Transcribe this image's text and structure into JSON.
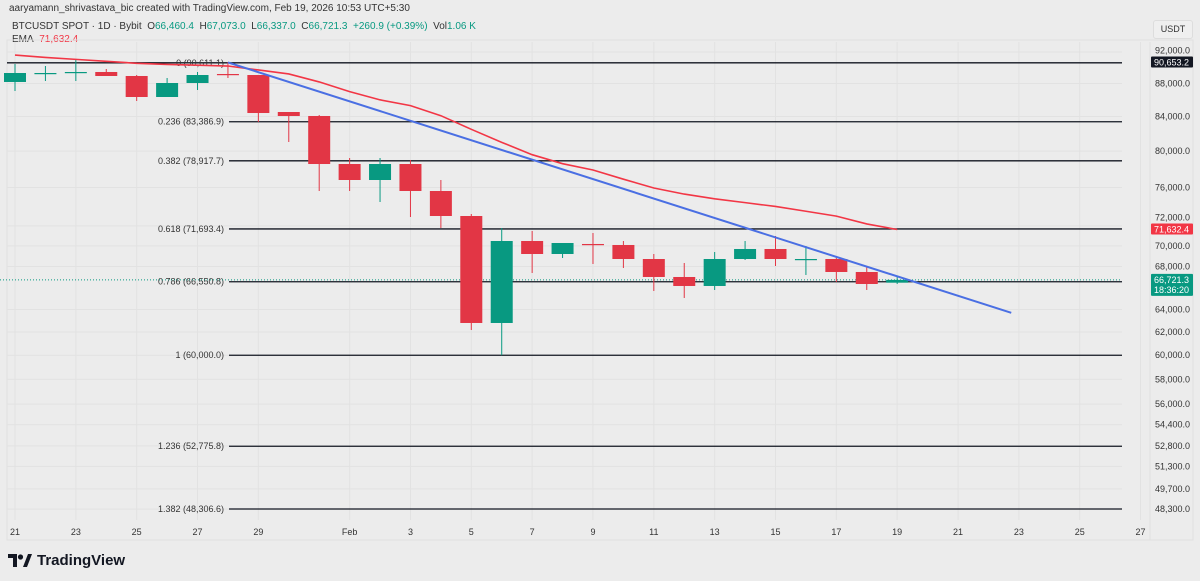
{
  "attribution": "aaryamann_shrivastava_bic created with TradingView.com, Feb 19, 2026 10:53 UTC+5:30",
  "legend": {
    "symbol": "BTCUSDT SPOT · 1D · Bybit",
    "open_label": "O",
    "open": "66,460.4",
    "high_label": "H",
    "high": "67,073.0",
    "low_label": "L",
    "low": "66,337.0",
    "close_label": "C",
    "close": "66,721.3",
    "change": "+260.9 (+0.39%)",
    "vol_label": "Vol",
    "vol": "1.06 K",
    "ema_label": "EMA",
    "ema_value": "71,632.4"
  },
  "currency_button": "USDT",
  "logo_text": "TradingView",
  "colors": {
    "up": "#089981",
    "down": "#e23645",
    "ema": "#f23645",
    "trend": "#4a6fe3",
    "fib": "#131722",
    "grid": "#e2e2e2"
  },
  "chart_data": {
    "type": "candlestick",
    "yscale": "log",
    "ylim": [
      47800,
      93500
    ],
    "y_ticks": [
      "92,000.0",
      "88,000.0",
      "84,000.0",
      "80,000.0",
      "76,000.0",
      "72,000.0",
      "70,000.0",
      "68,000.0",
      "64,000.0",
      "62,000.0",
      "60,000.0",
      "58,000.0",
      "56,000.0",
      "54,400.0",
      "52,800.0",
      "51,300.0",
      "49,700.0",
      "48,300.0"
    ],
    "x_ticks": [
      {
        "day": 0,
        "label": "21"
      },
      {
        "day": 2,
        "label": "23"
      },
      {
        "day": 4,
        "label": "25"
      },
      {
        "day": 6,
        "label": "27"
      },
      {
        "day": 8,
        "label": "29"
      },
      {
        "day": 11,
        "label": "Feb"
      },
      {
        "day": 13,
        "label": "3"
      },
      {
        "day": 15,
        "label": "5"
      },
      {
        "day": 17,
        "label": "7"
      },
      {
        "day": 19,
        "label": "9"
      },
      {
        "day": 21,
        "label": "11"
      },
      {
        "day": 23,
        "label": "13"
      },
      {
        "day": 25,
        "label": "15"
      },
      {
        "day": 27,
        "label": "17"
      },
      {
        "day": 29,
        "label": "19"
      },
      {
        "day": 31,
        "label": "21"
      },
      {
        "day": 33,
        "label": "23"
      },
      {
        "day": 35,
        "label": "25"
      },
      {
        "day": 37,
        "label": "27"
      }
    ],
    "candles_ohlc": [
      [
        88192,
        90457,
        87077,
        89316
      ],
      [
        89316,
        90202,
        88315,
        89316
      ],
      [
        89443,
        90969,
        88315,
        89443
      ],
      [
        89443,
        89821,
        88940,
        88940
      ],
      [
        88940,
        89065,
        85860,
        86345
      ],
      [
        86345,
        88690,
        86345,
        88066
      ],
      [
        88066,
        89443,
        87201,
        89065
      ],
      [
        89190,
        90712,
        88690,
        89065
      ],
      [
        89065,
        89065,
        83356,
        84419
      ],
      [
        84539,
        84539,
        81038,
        84064
      ],
      [
        84064,
        84182,
        75630,
        78563
      ],
      [
        78563,
        79231,
        75630,
        76812
      ],
      [
        76812,
        79231,
        74467,
        78563
      ],
      [
        78563,
        79008,
        72908,
        75630
      ],
      [
        75630,
        76812,
        71787,
        73011
      ],
      [
        73011,
        73217,
        62174,
        62790
      ],
      [
        62790,
        71787,
        60000,
        70483
      ],
      [
        70483,
        71483,
        67375,
        69203
      ],
      [
        69203,
        70284,
        68814,
        70284
      ],
      [
        70186,
        71282,
        68235,
        70087
      ],
      [
        70087,
        70483,
        67852,
        68717
      ],
      [
        68717,
        69203,
        65687,
        66996
      ],
      [
        66996,
        68331,
        65042,
        66152
      ],
      [
        66152,
        69398,
        65780,
        68717
      ],
      [
        68717,
        70483,
        68621,
        69693
      ],
      [
        69693,
        70982,
        68043,
        68717
      ],
      [
        68717,
        69988,
        67186,
        68717
      ],
      [
        68717,
        69008,
        66526,
        67470
      ],
      [
        67470,
        68043,
        65780,
        66338
      ],
      [
        66460.4,
        67073.0,
        66337.0,
        66721.3
      ]
    ],
    "ema": [
      91600,
      91300,
      91050,
      90800,
      90550,
      90400,
      90300,
      90200,
      89700,
      89200,
      88200,
      87000,
      86000,
      85300,
      84100,
      82500,
      81000,
      79600,
      78600,
      77900,
      76900,
      75950,
      75300,
      74800,
      74400,
      74000,
      73500,
      73000,
      72200,
      71632.4
    ],
    "trendline": {
      "start": {
        "day": 7,
        "price": 90653.2
      },
      "end": {
        "day": 32.75,
        "price": 63700
      }
    },
    "fib_levels": [
      {
        "price": 90611.1,
        "label": "0 (90,611.1)",
        "full": true
      },
      {
        "price": 83386.9,
        "label": "0.236 (83,386.9)"
      },
      {
        "price": 78917.7,
        "label": "0.382 (78,917.7)"
      },
      {
        "price": 71693.4,
        "label": "0.618 (71,693.4)"
      },
      {
        "price": 66550.8,
        "label": "0.786 (66,550.8)"
      },
      {
        "price": 60000.0,
        "label": "1 (60,000.0)"
      },
      {
        "price": 52775.8,
        "label": "1.236 (52,775.8)"
      },
      {
        "price": 48306.6,
        "label": "1.382 (48,306.6)"
      }
    ],
    "price_tags": [
      {
        "price": 90653.2,
        "label": "90,653.2",
        "color": "#131722"
      },
      {
        "price": 71632.4,
        "label": "71,632.4",
        "color": "#f23645"
      },
      {
        "price": 66721.3,
        "label": "66,721.3",
        "sub": "18:36:20",
        "color": "#089981"
      }
    ],
    "current_price": 66721.3
  }
}
